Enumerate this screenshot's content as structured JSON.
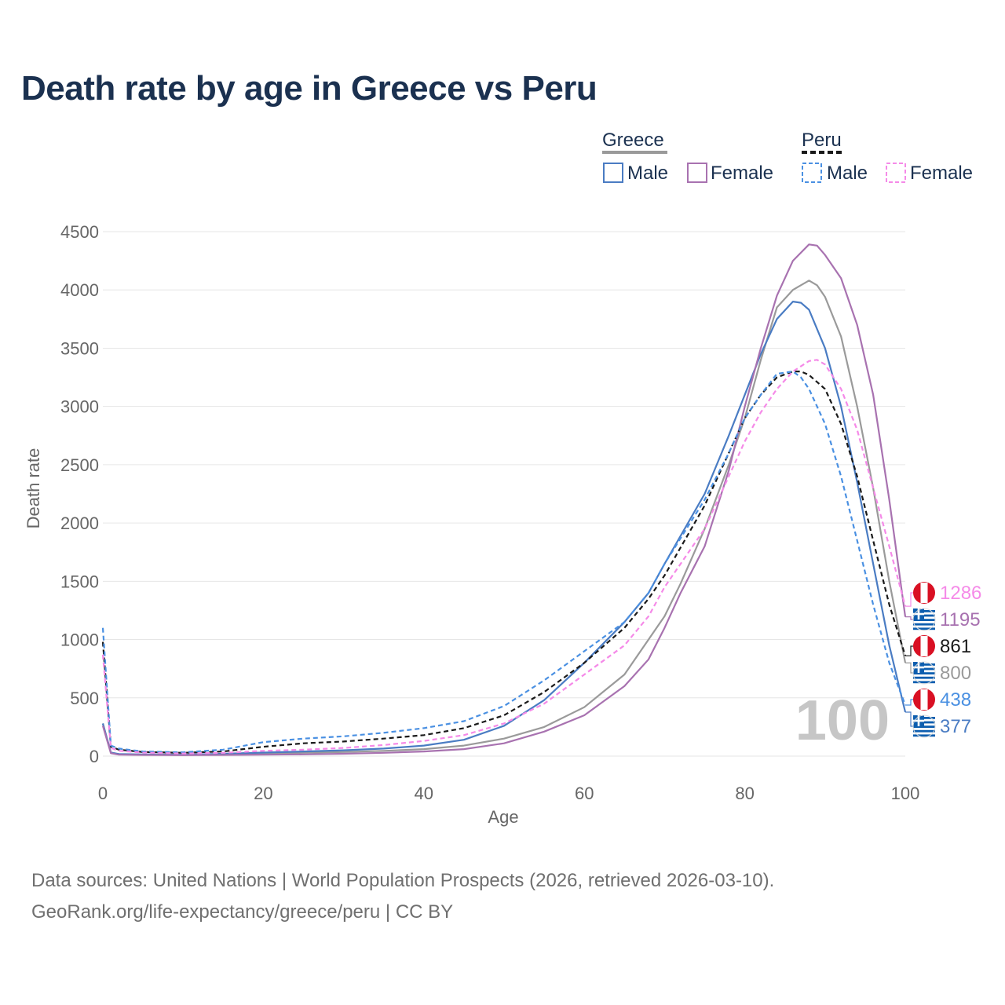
{
  "title": "Death rate by age in Greece vs Peru",
  "footer": {
    "line1": "Data sources: United Nations | World Population Prospects (2026, retrieved 2026-03-10).",
    "line2": "GeoRank.org/life-expectancy/greece/peru | CC BY"
  },
  "year_label": "100",
  "legend": {
    "greece": "Greece",
    "peru": "Peru",
    "male": "Male",
    "female": "Female"
  },
  "chart_data": {
    "type": "line",
    "title": "Death rate by age in Greece vs Peru",
    "xlabel": "Age",
    "ylabel": "Death rate",
    "xlim": [
      0,
      100
    ],
    "ylim": [
      0,
      4500
    ],
    "xticks": [
      0,
      20,
      40,
      60,
      80,
      100
    ],
    "yticks": [
      0,
      500,
      1000,
      1500,
      2000,
      2500,
      3000,
      3500,
      4000,
      4500
    ],
    "grid": true,
    "series": [
      {
        "name": "Greece Total",
        "country": "Greece",
        "color": "#9a9a9a",
        "dash": false,
        "end_value": "800",
        "points": [
          [
            0,
            280
          ],
          [
            1,
            30
          ],
          [
            2,
            15
          ],
          [
            5,
            12
          ],
          [
            10,
            10
          ],
          [
            15,
            14
          ],
          [
            20,
            22
          ],
          [
            25,
            28
          ],
          [
            30,
            35
          ],
          [
            35,
            45
          ],
          [
            40,
            60
          ],
          [
            45,
            90
          ],
          [
            50,
            150
          ],
          [
            55,
            250
          ],
          [
            60,
            420
          ],
          [
            65,
            700
          ],
          [
            70,
            1200
          ],
          [
            72,
            1480
          ],
          [
            75,
            1950
          ],
          [
            78,
            2500
          ],
          [
            80,
            2900
          ],
          [
            82,
            3400
          ],
          [
            84,
            3850
          ],
          [
            86,
            4000
          ],
          [
            88,
            4080
          ],
          [
            89,
            4040
          ],
          [
            90,
            3940
          ],
          [
            92,
            3600
          ],
          [
            94,
            3000
          ],
          [
            96,
            2300
          ],
          [
            98,
            1500
          ],
          [
            100,
            800
          ]
        ]
      },
      {
        "name": "Greece Male",
        "country": "Greece",
        "color": "#4a7cc3",
        "dash": false,
        "end_value": "377",
        "points": [
          [
            0,
            280
          ],
          [
            1,
            30
          ],
          [
            2,
            18
          ],
          [
            5,
            14
          ],
          [
            10,
            12
          ],
          [
            15,
            20
          ],
          [
            20,
            30
          ],
          [
            25,
            40
          ],
          [
            30,
            50
          ],
          [
            35,
            65
          ],
          [
            40,
            90
          ],
          [
            45,
            140
          ],
          [
            50,
            260
          ],
          [
            55,
            480
          ],
          [
            60,
            800
          ],
          [
            65,
            1150
          ],
          [
            68,
            1400
          ],
          [
            70,
            1650
          ],
          [
            75,
            2250
          ],
          [
            78,
            2750
          ],
          [
            80,
            3100
          ],
          [
            82,
            3450
          ],
          [
            84,
            3750
          ],
          [
            86,
            3900
          ],
          [
            87,
            3890
          ],
          [
            88,
            3830
          ],
          [
            90,
            3500
          ],
          [
            92,
            3000
          ],
          [
            94,
            2350
          ],
          [
            96,
            1650
          ],
          [
            98,
            950
          ],
          [
            100,
            377
          ]
        ]
      },
      {
        "name": "Greece Female",
        "country": "Greece",
        "color": "#a872b0",
        "dash": false,
        "end_value": "1195",
        "points": [
          [
            0,
            260
          ],
          [
            1,
            25
          ],
          [
            2,
            12
          ],
          [
            5,
            10
          ],
          [
            10,
            8
          ],
          [
            15,
            10
          ],
          [
            20,
            12
          ],
          [
            25,
            15
          ],
          [
            30,
            20
          ],
          [
            35,
            28
          ],
          [
            40,
            40
          ],
          [
            45,
            60
          ],
          [
            50,
            110
          ],
          [
            55,
            210
          ],
          [
            60,
            350
          ],
          [
            65,
            600
          ],
          [
            68,
            830
          ],
          [
            70,
            1100
          ],
          [
            72,
            1400
          ],
          [
            75,
            1800
          ],
          [
            78,
            2450
          ],
          [
            80,
            3000
          ],
          [
            82,
            3500
          ],
          [
            84,
            3950
          ],
          [
            86,
            4250
          ],
          [
            88,
            4390
          ],
          [
            89,
            4380
          ],
          [
            90,
            4300
          ],
          [
            92,
            4100
          ],
          [
            94,
            3700
          ],
          [
            96,
            3100
          ],
          [
            98,
            2200
          ],
          [
            100,
            1195
          ]
        ]
      },
      {
        "name": "Peru Total",
        "country": "Peru",
        "color": "#1a1a1a",
        "dash": true,
        "end_value": "861",
        "points": [
          [
            0,
            980
          ],
          [
            1,
            80
          ],
          [
            2,
            55
          ],
          [
            5,
            35
          ],
          [
            10,
            28
          ],
          [
            15,
            40
          ],
          [
            20,
            80
          ],
          [
            25,
            110
          ],
          [
            30,
            125
          ],
          [
            35,
            150
          ],
          [
            40,
            180
          ],
          [
            45,
            240
          ],
          [
            50,
            350
          ],
          [
            55,
            550
          ],
          [
            60,
            800
          ],
          [
            65,
            1100
          ],
          [
            68,
            1350
          ],
          [
            70,
            1550
          ],
          [
            75,
            2150
          ],
          [
            78,
            2600
          ],
          [
            80,
            2900
          ],
          [
            82,
            3100
          ],
          [
            84,
            3250
          ],
          [
            86,
            3300
          ],
          [
            87,
            3300
          ],
          [
            88,
            3270
          ],
          [
            90,
            3150
          ],
          [
            92,
            2850
          ],
          [
            94,
            2400
          ],
          [
            96,
            1850
          ],
          [
            98,
            1300
          ],
          [
            100,
            861
          ]
        ]
      },
      {
        "name": "Peru Male",
        "country": "Peru",
        "color": "#4a90e2",
        "dash": true,
        "end_value": "438",
        "points": [
          [
            0,
            1100
          ],
          [
            1,
            90
          ],
          [
            2,
            65
          ],
          [
            5,
            40
          ],
          [
            10,
            32
          ],
          [
            15,
            55
          ],
          [
            20,
            120
          ],
          [
            25,
            150
          ],
          [
            30,
            170
          ],
          [
            35,
            200
          ],
          [
            40,
            240
          ],
          [
            45,
            300
          ],
          [
            50,
            430
          ],
          [
            55,
            650
          ],
          [
            60,
            900
          ],
          [
            65,
            1150
          ],
          [
            68,
            1400
          ],
          [
            70,
            1650
          ],
          [
            75,
            2200
          ],
          [
            78,
            2600
          ],
          [
            80,
            2900
          ],
          [
            82,
            3100
          ],
          [
            84,
            3280
          ],
          [
            86,
            3300
          ],
          [
            87,
            3250
          ],
          [
            88,
            3150
          ],
          [
            90,
            2850
          ],
          [
            92,
            2400
          ],
          [
            94,
            1850
          ],
          [
            96,
            1300
          ],
          [
            98,
            800
          ],
          [
            100,
            438
          ]
        ]
      },
      {
        "name": "Peru Female",
        "country": "Peru",
        "color": "#f58ae8",
        "dash": true,
        "end_value": "1286",
        "points": [
          [
            0,
            870
          ],
          [
            1,
            70
          ],
          [
            2,
            45
          ],
          [
            5,
            30
          ],
          [
            10,
            22
          ],
          [
            15,
            28
          ],
          [
            20,
            45
          ],
          [
            25,
            55
          ],
          [
            30,
            70
          ],
          [
            35,
            95
          ],
          [
            40,
            130
          ],
          [
            45,
            180
          ],
          [
            50,
            280
          ],
          [
            55,
            450
          ],
          [
            60,
            700
          ],
          [
            65,
            950
          ],
          [
            68,
            1200
          ],
          [
            70,
            1450
          ],
          [
            75,
            1950
          ],
          [
            78,
            2400
          ],
          [
            80,
            2700
          ],
          [
            82,
            2950
          ],
          [
            84,
            3150
          ],
          [
            86,
            3300
          ],
          [
            88,
            3390
          ],
          [
            89,
            3400
          ],
          [
            90,
            3360
          ],
          [
            92,
            3150
          ],
          [
            94,
            2800
          ],
          [
            96,
            2300
          ],
          [
            98,
            1800
          ],
          [
            100,
            1286
          ]
        ]
      }
    ]
  }
}
